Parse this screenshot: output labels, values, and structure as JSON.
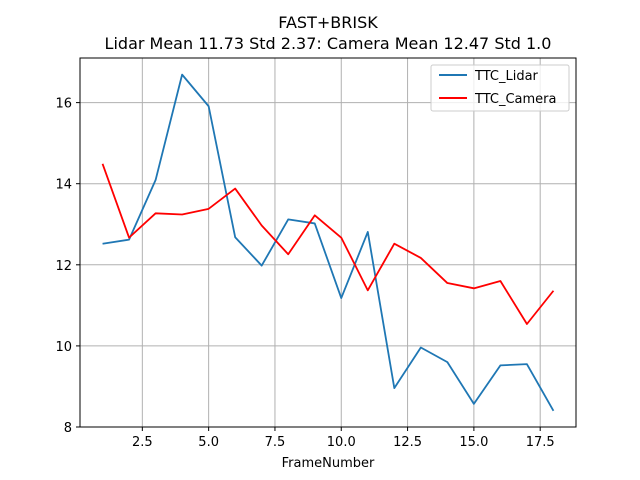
{
  "chart_data": {
    "type": "line",
    "title": "FAST+BRISK",
    "subtitle": "Lidar Mean 11.73 Std 2.37: Camera Mean 12.47 Std 1.0",
    "xlabel": "FrameNumber",
    "ylabel": "",
    "xlim": [
      0.15,
      18.85
    ],
    "ylim": [
      8.0,
      17.1
    ],
    "xticks": [
      2.5,
      5.0,
      7.5,
      10.0,
      12.5,
      15.0,
      17.5
    ],
    "xtick_labels": [
      "2.5",
      "5.0",
      "7.5",
      "10.0",
      "12.5",
      "15.0",
      "17.5"
    ],
    "yticks": [
      8,
      10,
      12,
      14,
      16
    ],
    "ytick_labels": [
      "8",
      "10",
      "12",
      "14",
      "16"
    ],
    "grid": true,
    "legend_position": "top-right",
    "x": [
      1,
      2,
      3,
      4,
      5,
      6,
      7,
      8,
      9,
      10,
      11,
      12,
      13,
      14,
      15,
      16,
      17,
      18
    ],
    "series": [
      {
        "name": "TTC_Lidar",
        "color": "#1f77b4",
        "values": [
          12.52,
          12.62,
          14.09,
          16.69,
          15.91,
          12.68,
          11.98,
          13.12,
          13.02,
          11.18,
          12.81,
          8.96,
          9.96,
          9.6,
          8.57,
          9.52,
          9.55,
          8.4
        ]
      },
      {
        "name": "TTC_Camera",
        "color": "#ff0000",
        "values": [
          14.49,
          12.67,
          13.27,
          13.24,
          13.38,
          13.88,
          12.97,
          12.26,
          13.22,
          12.67,
          11.37,
          12.52,
          12.17,
          11.55,
          11.42,
          11.6,
          10.54,
          11.36
        ]
      }
    ]
  }
}
